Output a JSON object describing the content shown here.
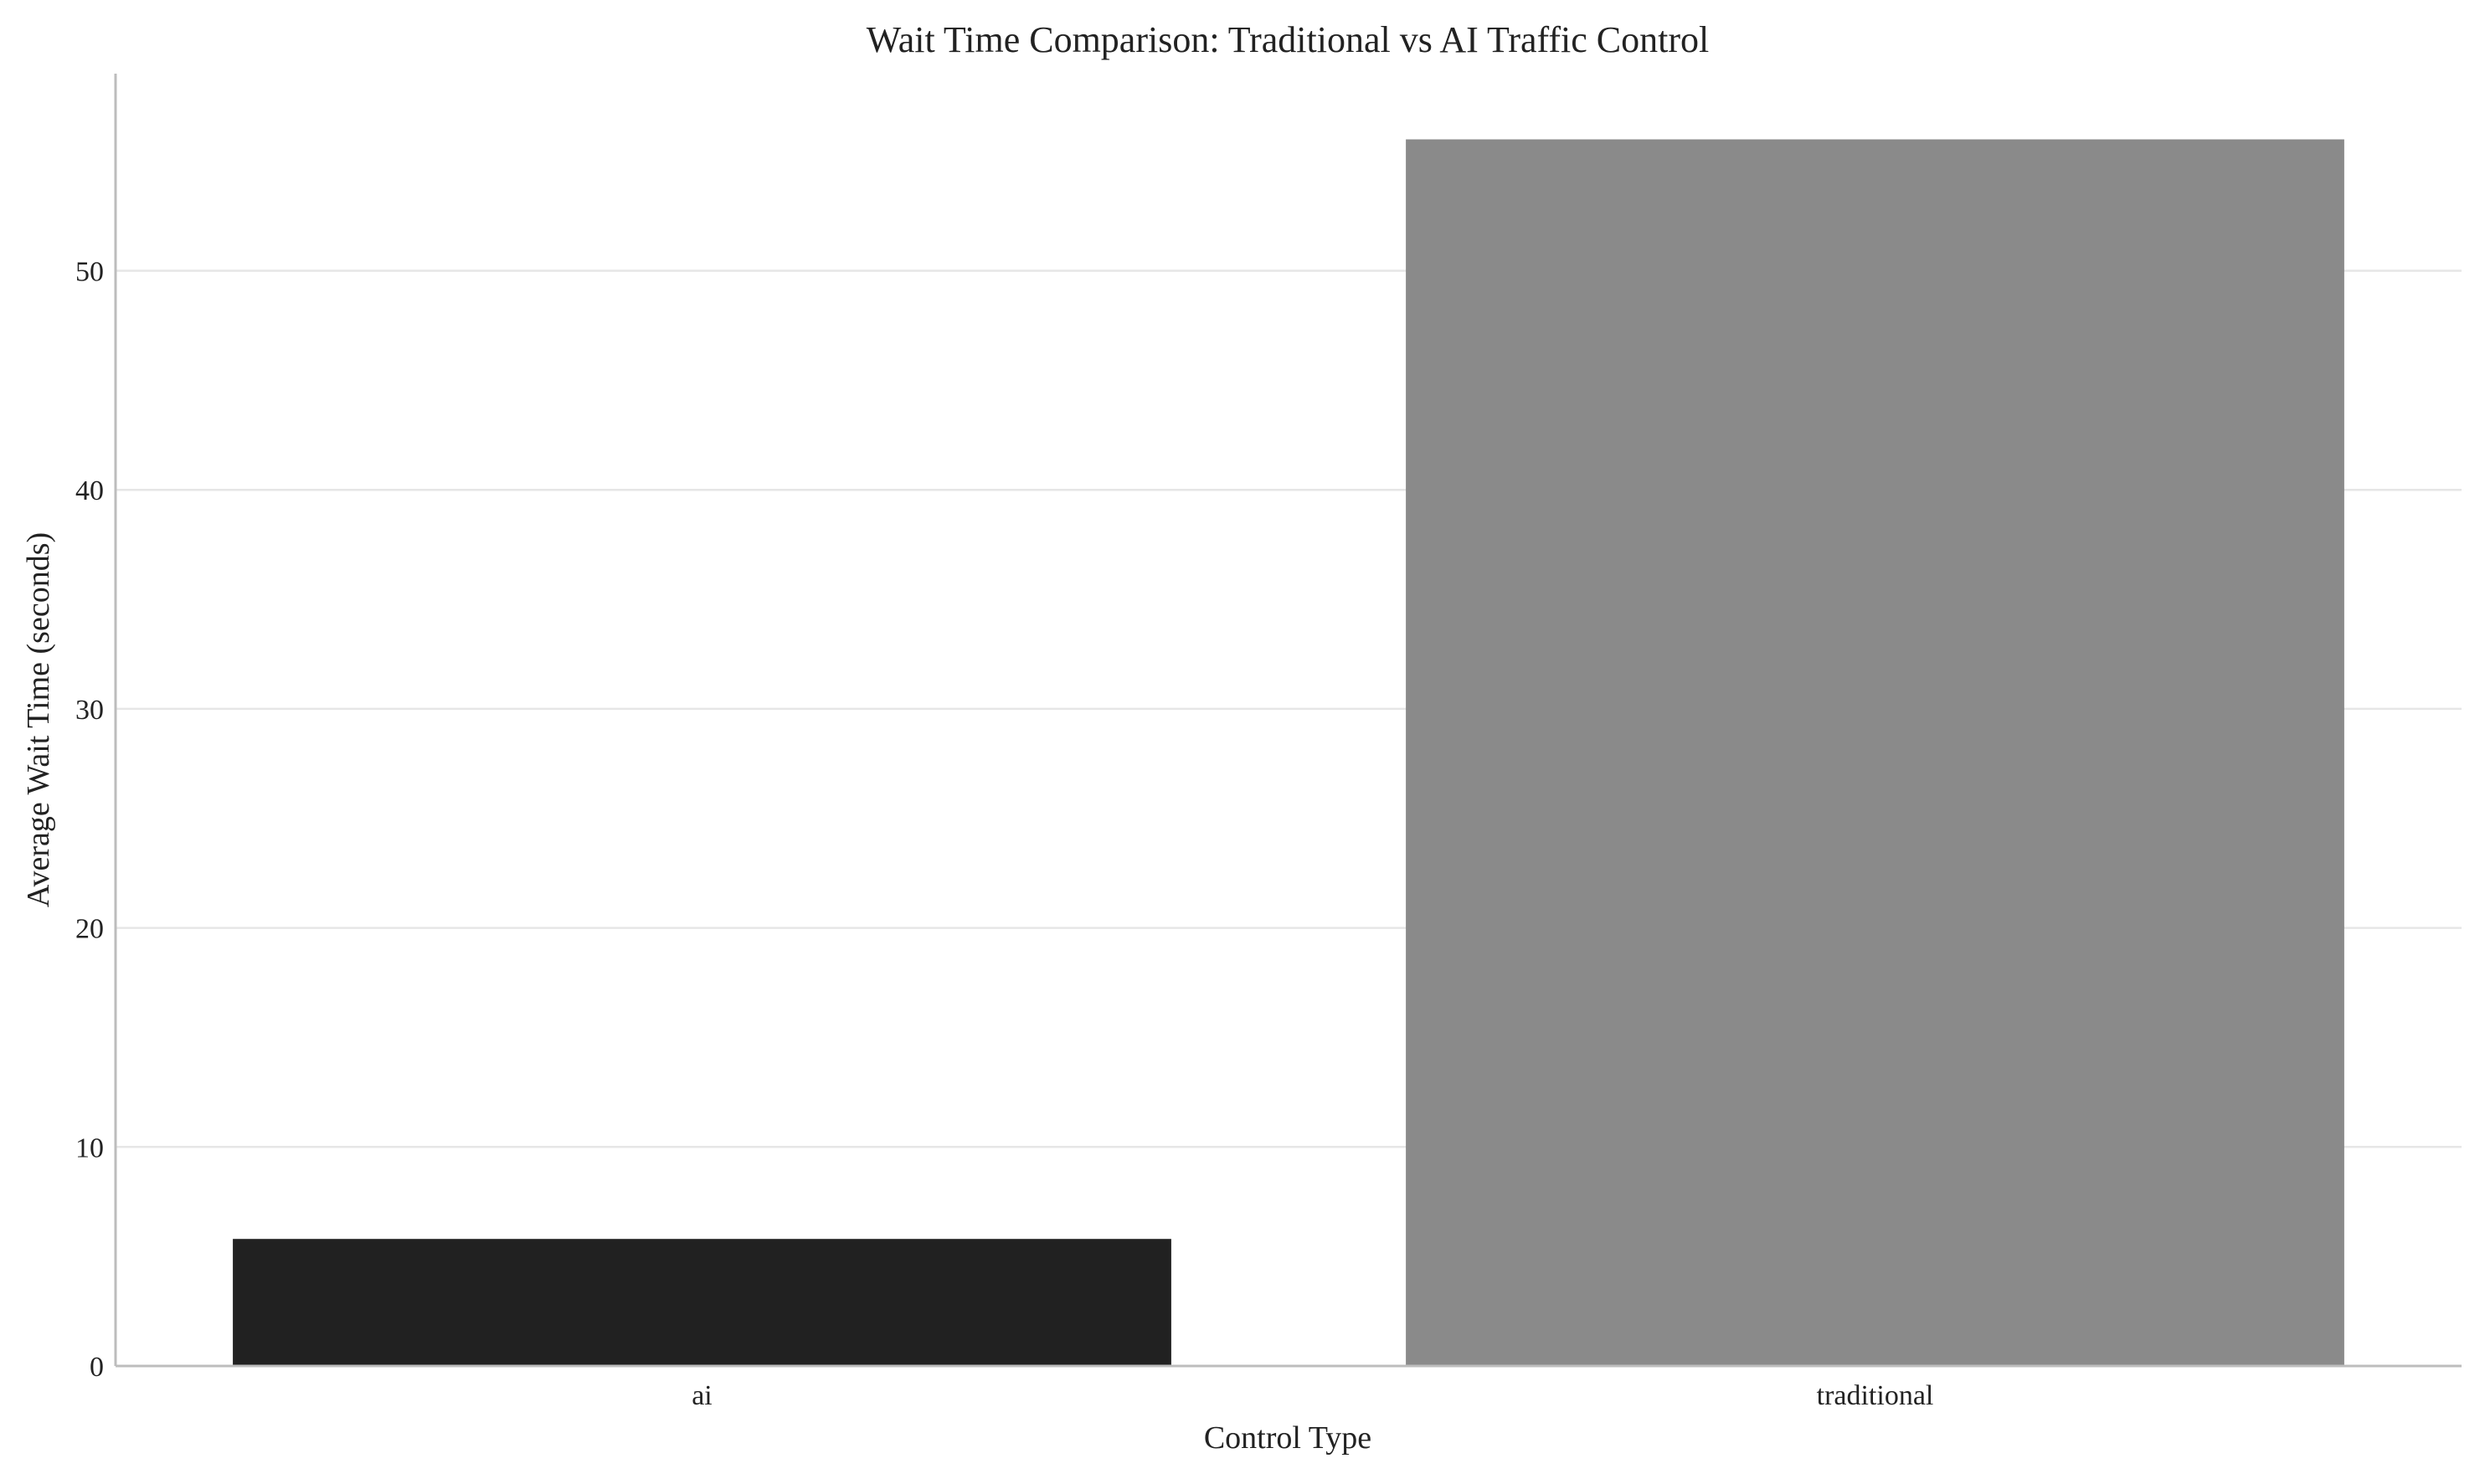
{
  "chart_data": {
    "type": "bar",
    "title": "Wait Time Comparison: Traditional vs AI Traffic Control",
    "xlabel": "Control Type",
    "ylabel": "Average Wait Time (seconds)",
    "categories": [
      "ai",
      "traditional"
    ],
    "values": [
      5.8,
      56.0
    ],
    "colors": [
      "#212121",
      "#8a8a8a"
    ],
    "ylim": [
      0,
      59
    ],
    "yticks": [
      0,
      10,
      20,
      30,
      40,
      50
    ],
    "grid": "horizontal",
    "legend": "none"
  }
}
